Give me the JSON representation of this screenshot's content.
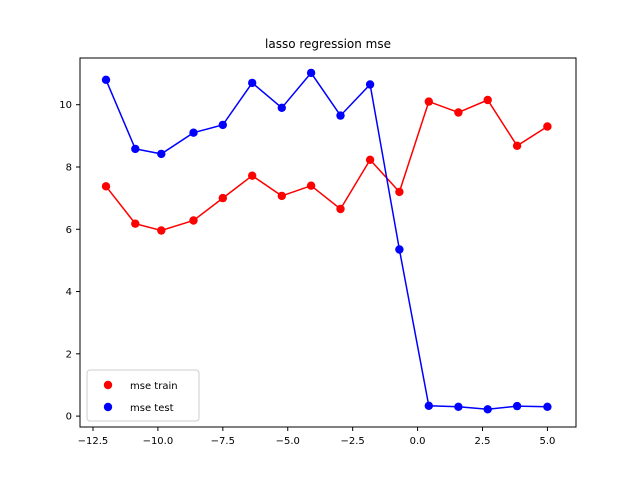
{
  "chart_data": {
    "type": "line",
    "title": "lasso regression mse",
    "xlabel": "",
    "ylabel": "",
    "xlim": [
      -13.0,
      6.1
    ],
    "ylim": [
      -0.35,
      11.5
    ],
    "x_ticks": [
      -12.5,
      -10.0,
      -7.5,
      -5.0,
      -2.5,
      0.0,
      2.5,
      5.0
    ],
    "x_tick_labels": [
      "−12.5",
      "−10.0",
      "−7.5",
      "−5.0",
      "−2.5",
      "0.0",
      "2.5",
      "5.0"
    ],
    "y_ticks": [
      0,
      2,
      4,
      6,
      8,
      10
    ],
    "y_tick_labels": [
      "0",
      "2",
      "4",
      "6",
      "8",
      "10"
    ],
    "grid": false,
    "legend_position": "lower-left",
    "x": [
      -12.0,
      -10.87,
      -9.87,
      -8.63,
      -7.5,
      -6.37,
      -5.23,
      -4.1,
      -2.97,
      -1.83,
      -0.7,
      0.43,
      1.57,
      2.7,
      3.83,
      5.0
    ],
    "series": [
      {
        "name": "mse train",
        "color": "#ff0000",
        "values": [
          7.38,
          6.18,
          5.96,
          6.28,
          7.0,
          7.72,
          7.07,
          7.4,
          6.65,
          8.23,
          7.2,
          10.1,
          9.75,
          10.15,
          8.68,
          9.3
        ]
      },
      {
        "name": "mse test",
        "color": "#0000ff",
        "values": [
          10.8,
          8.58,
          8.42,
          9.1,
          9.35,
          10.7,
          9.9,
          11.02,
          9.65,
          10.65,
          5.35,
          0.33,
          0.3,
          0.22,
          0.32,
          0.3
        ]
      }
    ]
  }
}
